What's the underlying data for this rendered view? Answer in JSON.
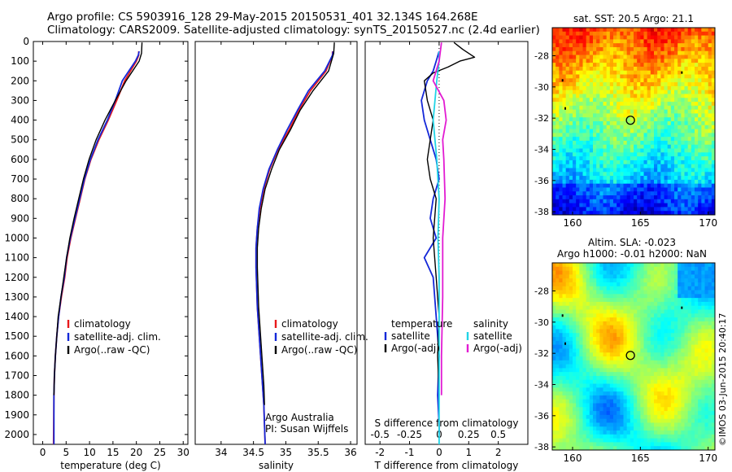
{
  "header": {
    "line1": "Argo profile: CS 5903916_128 29-May-2015 20150531_401 32.134S 164.268E",
    "line2": "Climatology: CARS2009. Satellite-adjusted climatology: synTS_20150527.nc (2.4d earlier)"
  },
  "side_stamp": "©IMOS 03-Jun-2015 20:40:17",
  "colors": {
    "climatology": "#e8191b",
    "satellite": "#1428d8",
    "argo": "#000000",
    "sal_satellite": "#21d4e6",
    "sal_argo": "#e21bd2"
  },
  "chart_data": [
    {
      "type": "line",
      "xlabel": "temperature (deg C)",
      "xlim": [
        -2,
        31
      ],
      "ylim": [
        2050,
        0
      ],
      "xticks": [
        "0",
        "5",
        "10",
        "15",
        "20",
        "25",
        "30"
      ],
      "yticks": [
        "0",
        "100",
        "200",
        "300",
        "400",
        "500",
        "600",
        "700",
        "800",
        "900",
        "1000",
        "1100",
        "1200",
        "1300",
        "1400",
        "1500",
        "1600",
        "1700",
        "1800",
        "1900",
        "2000"
      ],
      "legend": [
        "climatology",
        "satellite-adj. clim.",
        "Argo(..raw -QC)"
      ],
      "series": [
        {
          "name": "climatology",
          "x": [
            20.5,
            20.5,
            20.0,
            17.5,
            15.8,
            14.0,
            12.0,
            10.3,
            9.0,
            8.0,
            7.0,
            6.0,
            5.2,
            4.7,
            4.0,
            3.4,
            3.0,
            2.7,
            2.5,
            2.4,
            2.3
          ],
          "y": [
            50,
            70,
            100,
            200,
            300,
            400,
            500,
            600,
            700,
            800,
            900,
            1000,
            1100,
            1200,
            1300,
            1400,
            1500,
            1600,
            1700,
            1800,
            2050
          ]
        },
        {
          "name": "satellite-adj. clim.",
          "x": [
            20.6,
            20.4,
            19.8,
            17.0,
            15.5,
            13.8,
            11.8,
            10.2,
            8.9,
            7.9,
            6.9,
            5.9,
            5.1,
            4.6,
            3.9,
            3.4,
            3.0,
            2.7,
            2.5,
            2.4,
            2.4
          ],
          "y": [
            50,
            70,
            100,
            200,
            300,
            400,
            500,
            600,
            700,
            800,
            900,
            1000,
            1100,
            1200,
            1300,
            1400,
            1500,
            1600,
            1700,
            1800,
            2050
          ]
        },
        {
          "name": "Argo(..raw -QC)",
          "x": [
            21.2,
            21.1,
            20.6,
            17.8,
            15.5,
            13.3,
            11.4,
            9.9,
            8.7,
            7.7,
            6.7,
            5.8,
            5.1,
            4.5,
            3.9,
            3.3,
            3.0,
            2.7,
            2.5,
            2.4
          ],
          "y": [
            5,
            60,
            100,
            200,
            300,
            400,
            500,
            600,
            700,
            800,
            900,
            1000,
            1100,
            1200,
            1300,
            1400,
            1500,
            1600,
            1700,
            1800
          ]
        }
      ]
    },
    {
      "type": "line",
      "xlabel": "salinity",
      "xlim": [
        33.6,
        36.1
      ],
      "ylim": [
        2050,
        0
      ],
      "xticks": [
        "34",
        "34.5",
        "35",
        "35.5",
        "36"
      ],
      "legend": [
        "climatology",
        "satellite-adj. clim.",
        "Argo(..raw -QC)"
      ],
      "annotation": [
        "Argo Australia",
        "PI: Susan Wijffels"
      ],
      "series": [
        {
          "name": "climatology",
          "x": [
            35.72,
            35.72,
            35.62,
            35.38,
            35.2,
            35.05,
            34.88,
            34.75,
            34.66,
            34.6,
            34.56,
            34.54,
            34.54,
            34.55,
            34.56,
            34.58,
            34.6,
            34.62,
            34.64,
            34.66,
            34.68
          ],
          "y": [
            50,
            70,
            150,
            250,
            350,
            450,
            550,
            650,
            750,
            850,
            950,
            1050,
            1150,
            1250,
            1350,
            1450,
            1550,
            1650,
            1750,
            1850,
            2050
          ]
        },
        {
          "name": "satellite-adj. clim.",
          "x": [
            35.73,
            35.72,
            35.6,
            35.35,
            35.18,
            35.02,
            34.87,
            34.74,
            34.65,
            34.59,
            34.56,
            34.54,
            34.54,
            34.55,
            34.56,
            34.58,
            34.6,
            34.62,
            34.64,
            34.66,
            34.68
          ],
          "y": [
            50,
            70,
            150,
            250,
            350,
            450,
            550,
            650,
            750,
            850,
            950,
            1050,
            1150,
            1250,
            1350,
            1450,
            1550,
            1650,
            1750,
            1850,
            2050
          ]
        },
        {
          "name": "Argo(..raw -QC)",
          "x": [
            35.75,
            35.74,
            35.66,
            35.42,
            35.22,
            35.07,
            34.9,
            34.78,
            34.68,
            34.62,
            34.58,
            34.56,
            34.56,
            34.57,
            34.58,
            34.6,
            34.62,
            34.64,
            34.66,
            34.67
          ],
          "y": [
            5,
            60,
            150,
            250,
            350,
            450,
            550,
            650,
            750,
            850,
            950,
            1050,
            1150,
            1250,
            1350,
            1450,
            1550,
            1650,
            1750,
            1850
          ]
        }
      ]
    },
    {
      "type": "line",
      "xlabel": "T difference from climatology",
      "xlabel_top": "S difference from climatology",
      "xlim": [
        -2.5,
        3
      ],
      "ylim": [
        2050,
        0
      ],
      "xticks": [
        "-2",
        "-1",
        "0",
        "1",
        "2"
      ],
      "xticks_secondary": [
        "-0.5",
        "-0.25",
        "0",
        "0.25",
        "0.5"
      ],
      "legend": {
        "temperature": [
          "satellite",
          "Argo(-adj)"
        ],
        "salinity": [
          "satellite",
          "Argo(-adj)"
        ]
      },
      "legend_titles": [
        "temperature",
        "salinity"
      ],
      "series": [
        {
          "name": "temperature satellite",
          "x": [
            0.0,
            -0.1,
            -0.2,
            -0.4,
            -0.6,
            -0.5,
            -0.3,
            -0.1,
            0.0,
            -0.2,
            -0.3,
            -0.1,
            -0.5,
            -0.2,
            -0.1,
            0.0,
            -0.05,
            0.0,
            0.0
          ],
          "y": [
            50,
            100,
            150,
            200,
            300,
            400,
            500,
            600,
            700,
            800,
            900,
            1000,
            1100,
            1200,
            1400,
            1600,
            1800,
            1950,
            2000
          ]
        },
        {
          "name": "temperature Argo(-adj)",
          "x": [
            0.5,
            0.8,
            1.2,
            0.7,
            0.3,
            -0.2,
            -0.5,
            -0.4,
            -0.2,
            -0.3,
            -0.4,
            -0.3,
            -0.1,
            -0.2,
            -0.1,
            0.0,
            -0.05,
            0.0
          ],
          "y": [
            5,
            40,
            80,
            100,
            130,
            160,
            200,
            300,
            400,
            500,
            600,
            700,
            800,
            1000,
            1200,
            1400,
            1600,
            1800
          ]
        },
        {
          "name": "salinity satellite",
          "x": [
            0.0,
            0.0,
            -0.02,
            -0.05,
            -0.02,
            0.0,
            -0.01,
            0.0,
            0.0,
            0.0,
            0.0
          ],
          "y": [
            50,
            100,
            200,
            400,
            600,
            800,
            1000,
            1200,
            1500,
            1800,
            2050
          ]
        },
        {
          "name": "salinity Argo(-adj)",
          "x": [
            0.02,
            0.0,
            -0.05,
            0.04,
            0.06,
            0.03,
            0.04,
            0.05,
            0.03,
            0.03,
            0.02,
            0.02
          ],
          "y": [
            5,
            100,
            200,
            300,
            400,
            500,
            600,
            800,
            1000,
            1300,
            1600,
            1800
          ]
        }
      ]
    },
    {
      "type": "heatmap",
      "title": "sat. SST: 20.5  Argo: 21.1",
      "xticks": [
        "160",
        "165",
        "170"
      ],
      "yticks": [
        "-28",
        "-30",
        "-32",
        "-34",
        "-36",
        "-38"
      ],
      "xlim": [
        158.5,
        170.5
      ],
      "ylim": [
        -38.2,
        -26.2
      ],
      "marker": {
        "x": 164.268,
        "y": -32.134
      }
    },
    {
      "type": "heatmap",
      "title": "Altim. SLA: -0.023",
      "subtitle": "Argo h1000: -0.01 h2000: NaN",
      "xticks": [
        "160",
        "165",
        "170"
      ],
      "yticks": [
        "-28",
        "-30",
        "-32",
        "-34",
        "-36",
        "-38"
      ],
      "xlim": [
        158.5,
        170.5
      ],
      "ylim": [
        -38.2,
        -26.2
      ],
      "marker": {
        "x": 164.268,
        "y": -32.134
      }
    }
  ]
}
